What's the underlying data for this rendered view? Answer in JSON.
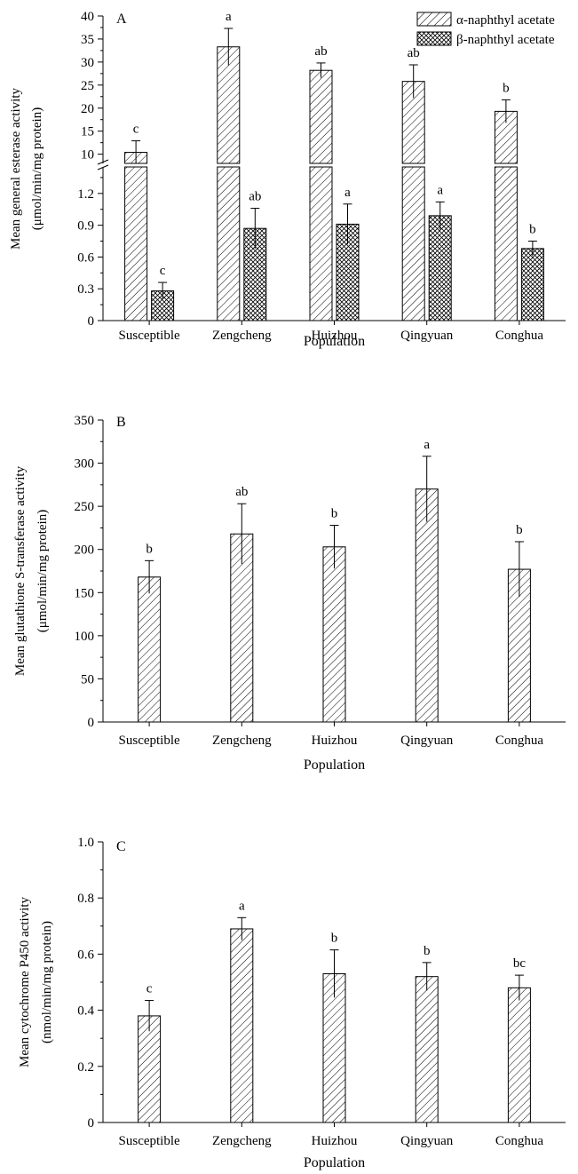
{
  "chart_data": [
    {
      "type": "bar",
      "panel_label": "A",
      "title": "",
      "xlabel": "Population",
      "ylabel_lines": [
        "Mean general esterase activity",
        "(μmol/min/mg protein)"
      ],
      "categories": [
        "Susceptible",
        "Zengcheng",
        "Huizhou",
        "Qingyuan",
        "Conghua"
      ],
      "axis_break": true,
      "ylim_lower": [
        0,
        1.45
      ],
      "ylim_upper": [
        8,
        40
      ],
      "yticks_lower": [
        "0",
        "0.3",
        "0.6",
        "0.9",
        "1.2"
      ],
      "yticks_upper": [
        "10",
        "15",
        "20",
        "25",
        "30",
        "35",
        "40"
      ],
      "legend_position": "top-right",
      "series": [
        {
          "name": "α-naphthyl acetate",
          "pattern": "diagonal",
          "values": [
            10.4,
            33.3,
            28.2,
            25.8,
            19.3
          ],
          "errors": [
            2.5,
            4.0,
            1.6,
            3.6,
            2.5
          ],
          "letters": [
            "c",
            "a",
            "ab",
            "ab",
            "b"
          ]
        },
        {
          "name": "β-naphthyl acetate",
          "pattern": "crosshatch",
          "values": [
            0.28,
            0.87,
            0.91,
            0.99,
            0.68
          ],
          "errors": [
            0.08,
            0.19,
            0.19,
            0.13,
            0.07
          ],
          "letters": [
            "c",
            "ab",
            "a",
            "a",
            "b"
          ]
        }
      ]
    },
    {
      "type": "bar",
      "panel_label": "B",
      "title": "",
      "xlabel": "Population",
      "ylabel_lines": [
        "Mean glutathione S-transferase activity",
        "(μmol/min/mg protein)"
      ],
      "categories": [
        "Susceptible",
        "Zengcheng",
        "Huizhou",
        "Qingyuan",
        "Conghua"
      ],
      "ylim": [
        0,
        350
      ],
      "yticks": [
        "0",
        "50",
        "100",
        "150",
        "200",
        "250",
        "300",
        "350"
      ],
      "series": [
        {
          "name": "",
          "pattern": "diagonal",
          "values": [
            168,
            218,
            203,
            270,
            177
          ],
          "errors": [
            19,
            35,
            25,
            38,
            32
          ],
          "letters": [
            "b",
            "ab",
            "b",
            "a",
            "b"
          ]
        }
      ]
    },
    {
      "type": "bar",
      "panel_label": "C",
      "title": "",
      "xlabel": "Population",
      "ylabel_lines": [
        "Mean cytochrome P450 activity",
        "(nmol/min/mg protein)"
      ],
      "categories": [
        "Susceptible",
        "Zengcheng",
        "Huizhou",
        "Qingyuan",
        "Conghua"
      ],
      "ylim": [
        0,
        1.0
      ],
      "yticks": [
        "0",
        "0.2",
        "0.4",
        "0.6",
        "0.8",
        "1.0"
      ],
      "series": [
        {
          "name": "",
          "pattern": "diagonal",
          "values": [
            0.38,
            0.69,
            0.53,
            0.52,
            0.48
          ],
          "errors": [
            0.055,
            0.04,
            0.085,
            0.05,
            0.045
          ],
          "letters": [
            "c",
            "a",
            "b",
            "b",
            "bc"
          ]
        }
      ]
    }
  ]
}
